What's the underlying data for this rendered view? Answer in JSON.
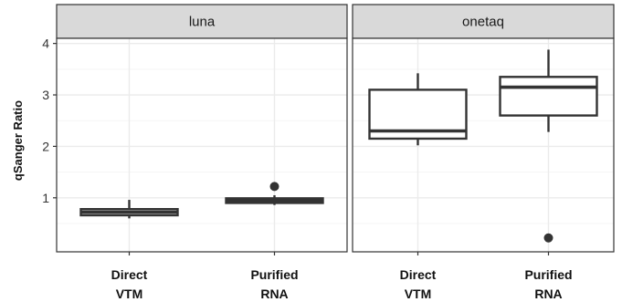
{
  "chart_data": {
    "type": "boxplot",
    "ylabel": "qSanger Ratio",
    "xlabel": "",
    "ylim": [
      -0.05,
      4.1
    ],
    "yticks": [
      1,
      2,
      3,
      4
    ],
    "categories": [
      {
        "line1": "Direct",
        "line2": "VTM"
      },
      {
        "line1": "Purified",
        "line2": "RNA"
      }
    ],
    "panels": [
      {
        "name": "luna",
        "boxes": [
          {
            "category": "Direct VTM",
            "whisker_low": 0.6,
            "q1": 0.66,
            "median": 0.72,
            "q3": 0.78,
            "whisker_high": 0.96,
            "outliers": []
          },
          {
            "category": "Purified RNA",
            "whisker_low": 0.86,
            "q1": 0.9,
            "median": 0.94,
            "q3": 0.99,
            "whisker_high": 1.05,
            "outliers": [
              1.22
            ]
          }
        ]
      },
      {
        "name": "onetaq",
        "boxes": [
          {
            "category": "Direct VTM",
            "whisker_low": 2.02,
            "q1": 2.15,
            "median": 2.3,
            "q3": 3.1,
            "whisker_high": 3.42,
            "outliers": []
          },
          {
            "category": "Purified RNA",
            "whisker_low": 2.28,
            "q1": 2.6,
            "median": 3.15,
            "q3": 3.35,
            "whisker_high": 3.88,
            "outliers": [
              0.22
            ]
          }
        ]
      }
    ],
    "grid": true,
    "colors": {
      "panel_bg": "#ffffff",
      "panel_border": "#333333",
      "strip_bg": "#d9d9d9",
      "grid_major": "#ebebeb",
      "grid_minor": "#f5f5f5",
      "box_stroke": "#333333"
    }
  }
}
